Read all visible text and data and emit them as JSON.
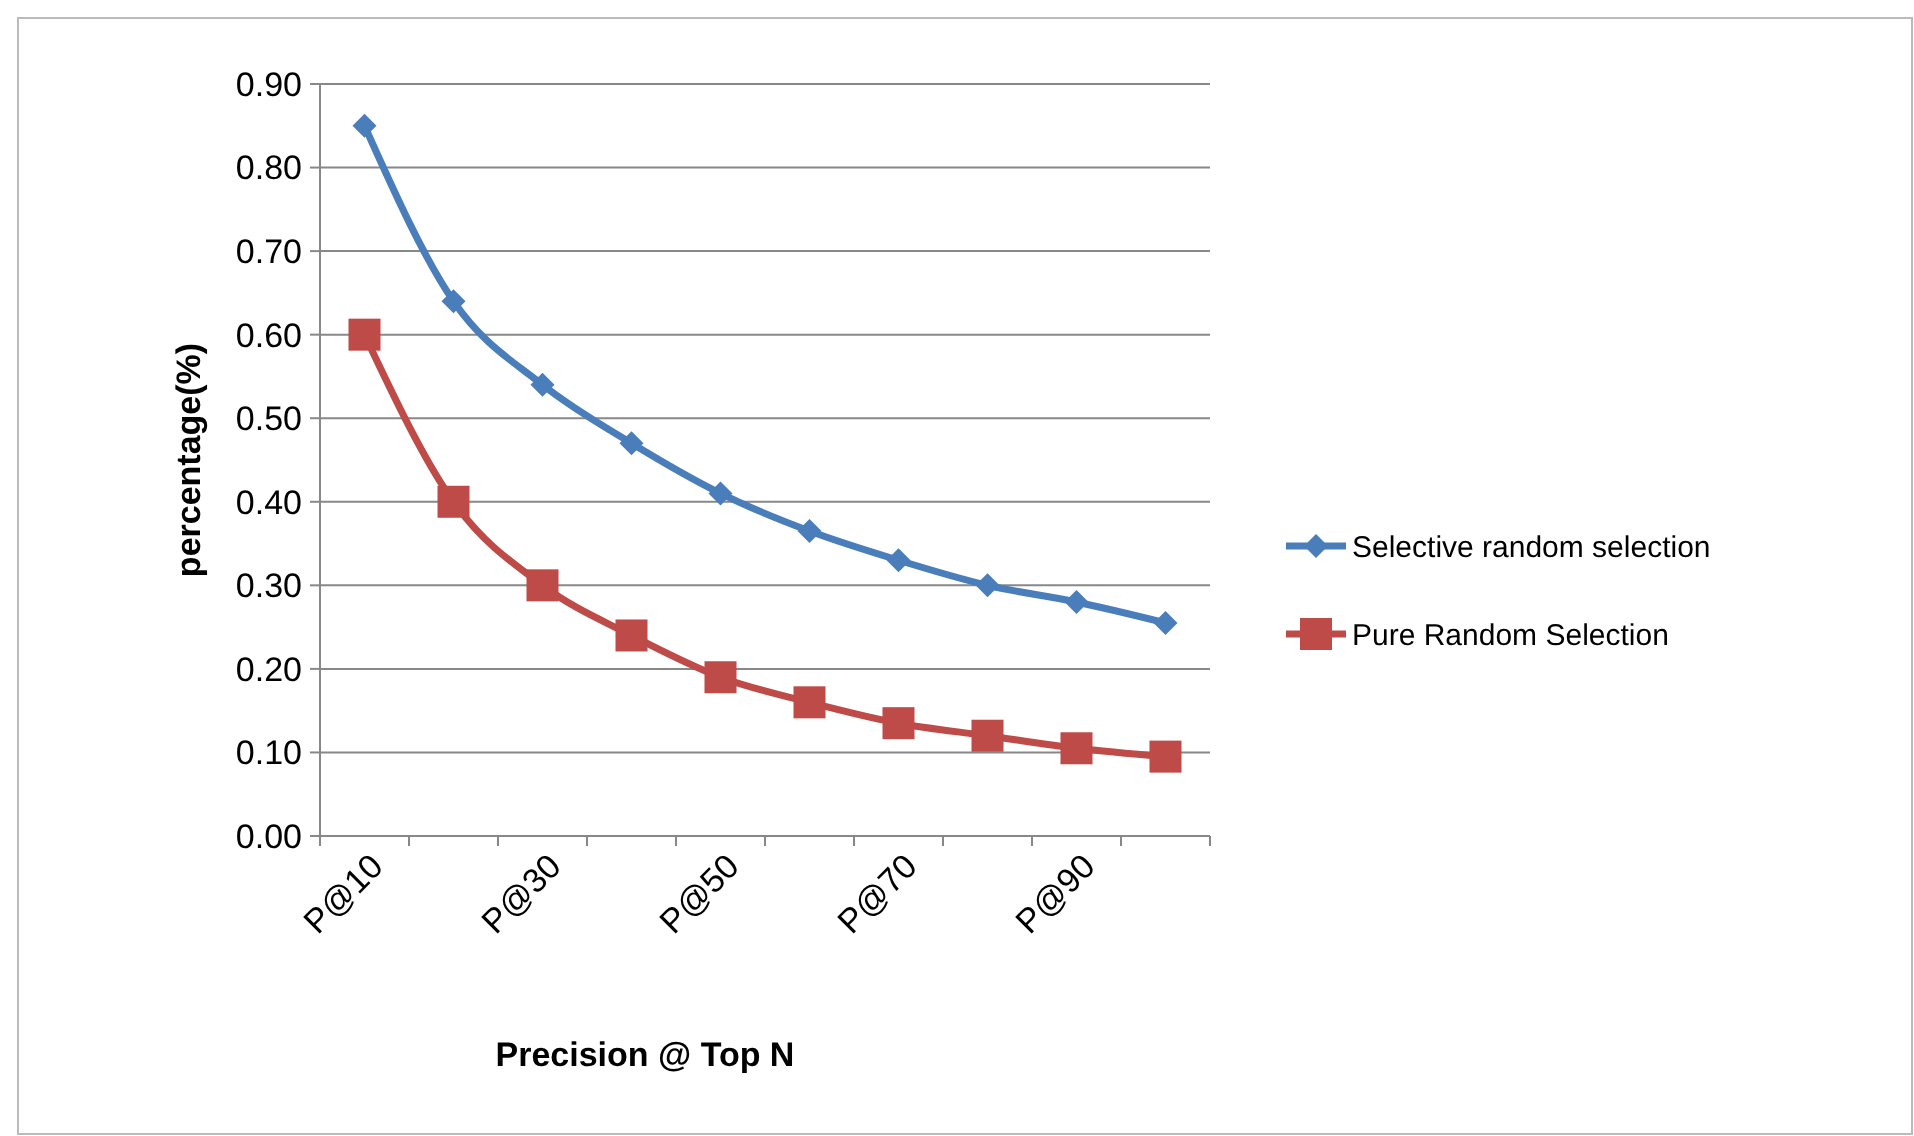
{
  "chart_data": {
    "type": "line",
    "xlabel": "Precision @ Top N",
    "ylabel": "percentage(%)",
    "categories": [
      "P@10",
      null,
      "P@30",
      null,
      "P@50",
      null,
      "P@70",
      null,
      "P@90",
      null
    ],
    "series": [
      {
        "name": "Selective random selection",
        "color": "#4a7ebb",
        "marker": "diamond",
        "values": [
          0.85,
          0.64,
          0.54,
          0.47,
          0.41,
          0.365,
          0.33,
          0.3,
          0.28,
          0.255
        ]
      },
      {
        "name": "Pure Random Selection",
        "color": "#be4b48",
        "marker": "square",
        "values": [
          0.6,
          0.4,
          0.3,
          0.24,
          0.19,
          0.16,
          0.135,
          0.12,
          0.105,
          0.095
        ]
      }
    ],
    "ylim": [
      0,
      0.9
    ],
    "yticks": [
      {
        "value": 0,
        "label": "0.00"
      },
      {
        "value": 0.1,
        "label": "0.10"
      },
      {
        "value": 0.2,
        "label": "0.20"
      },
      {
        "value": 0.3,
        "label": "0.30"
      },
      {
        "value": 0.4,
        "label": "0.40"
      },
      {
        "value": 0.5,
        "label": "0.50"
      },
      {
        "value": 0.6,
        "label": "0.60"
      },
      {
        "value": 0.7,
        "label": "0.70"
      },
      {
        "value": 0.8,
        "label": "0.80"
      },
      {
        "value": 0.9,
        "label": "0.90"
      }
    ],
    "grid": "y",
    "legend": "right",
    "line_style": "solid"
  }
}
